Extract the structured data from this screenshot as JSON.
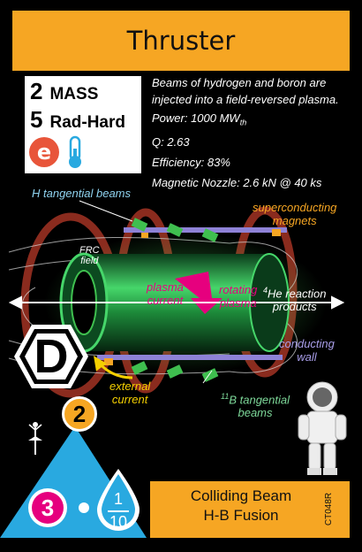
{
  "card": {
    "title": "Thruster",
    "mass": {
      "value": "2",
      "label": "MASS"
    },
    "rad_hard": {
      "value": "5",
      "label": "Rad-Hard"
    },
    "description_lines": [
      "Beams of hydrogen and boron are",
      "injected into a field-reversed plasma."
    ],
    "power": {
      "prefix": "Power: 1000 MW",
      "sub": "th"
    },
    "q": "Q: 2.63",
    "efficiency": "Efficiency: 83%",
    "nozzle": "Magnetic Nozzle: 2.6 kN @ 40 ks",
    "diagram_labels": {
      "h_beams": "H tangential beams",
      "sc_magnets_1": "superconducting",
      "sc_magnets_2": "magnets",
      "frc_1": "FRC",
      "frc_2": "field",
      "plasma_current_1": "plasma",
      "plasma_current_2": "current",
      "rotating_1": "rotating",
      "rotating_2": "plasma",
      "he_prefix": "4",
      "he_1": "He reaction",
      "he_2": "products",
      "conducting_1": "conducting",
      "conducting_2": "wall",
      "external_1": "external",
      "external_2": "current",
      "b_prefix": "11",
      "b_1": "B tangential",
      "b_2": "beams"
    },
    "type_letter": "D",
    "upgrade_level": "2",
    "thrust": "3",
    "fuel_num": "1",
    "fuel_den": "10",
    "bottom_line_1": "Colliding Beam",
    "bottom_line_2": "H-B Fusion",
    "card_id": "CT048R",
    "colors": {
      "orange": "#f6a623",
      "cyan": "#29a9e0",
      "magenta": "#e6007e",
      "green": "#3fbf4f",
      "purple": "#8e82d6",
      "yellow": "#f5d000",
      "red_brown": "#8a2b1e"
    },
    "icons": [
      "electric-e-icon",
      "thermometer-icon",
      "ballerina-icon",
      "astronaut-icon"
    ]
  }
}
